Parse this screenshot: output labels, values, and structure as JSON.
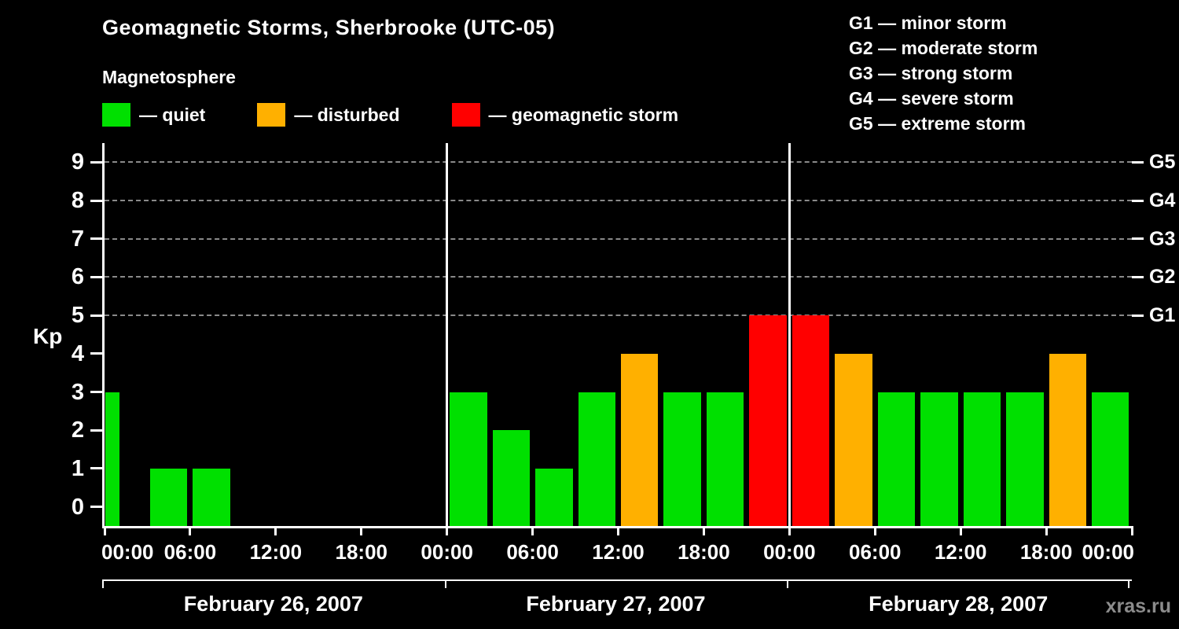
{
  "title": "Geomagnetic Storms, Sherbrooke (UTC-05)",
  "subtitle": "Magnetosphere",
  "watermark": "xras.ru",
  "legend": [
    {
      "key": "quiet",
      "label": "— quiet",
      "color": "#00e000"
    },
    {
      "key": "disturbed",
      "label": "— disturbed",
      "color": "#ffb000"
    },
    {
      "key": "storm",
      "label": "— geomagnetic storm",
      "color": "#ff0000"
    }
  ],
  "storm_scale": [
    "G1 — minor storm",
    "G2 — moderate storm",
    "G3 — strong storm",
    "G4 — severe storm",
    "G5 — extreme storm"
  ],
  "chart_data": {
    "type": "bar",
    "title": "Geomagnetic Storms, Sherbrooke (UTC-05)",
    "ylabel": "Kp",
    "xlabel": "",
    "ylim": [
      0,
      9
    ],
    "yticks": [
      0,
      1,
      2,
      3,
      4,
      5,
      6,
      7,
      8,
      9
    ],
    "gridlines_kp": [
      5,
      6,
      7,
      8,
      9
    ],
    "grid": "dashed horizontal lines at Kp 5-9",
    "legend_position": "top-left",
    "right_axis_ticks": [
      {
        "kp": 5,
        "label": "G1"
      },
      {
        "kp": 6,
        "label": "G2"
      },
      {
        "kp": 7,
        "label": "G3"
      },
      {
        "kp": 8,
        "label": "G4"
      },
      {
        "kp": 9,
        "label": "G5"
      }
    ],
    "x_tick_labels": [
      "00:00",
      "06:00",
      "12:00",
      "18:00",
      "00:00",
      "06:00",
      "12:00",
      "18:00",
      "00:00",
      "06:00",
      "12:00",
      "18:00",
      "00:00"
    ],
    "interval_hours": 3,
    "color_rules": {
      "disturbed_min_kp": 4,
      "storm_min_kp": 5
    },
    "days": [
      {
        "date": "February 26, 2007",
        "values": [
          3,
          1,
          1,
          0,
          0,
          0,
          0,
          0
        ],
        "first_bar_narrow": true
      },
      {
        "date": "February 27, 2007",
        "values": [
          3,
          2,
          1,
          3,
          4,
          3,
          3,
          5
        ]
      },
      {
        "date": "February 28, 2007",
        "values": [
          5,
          4,
          3,
          3,
          3,
          3,
          4,
          3
        ]
      }
    ]
  }
}
